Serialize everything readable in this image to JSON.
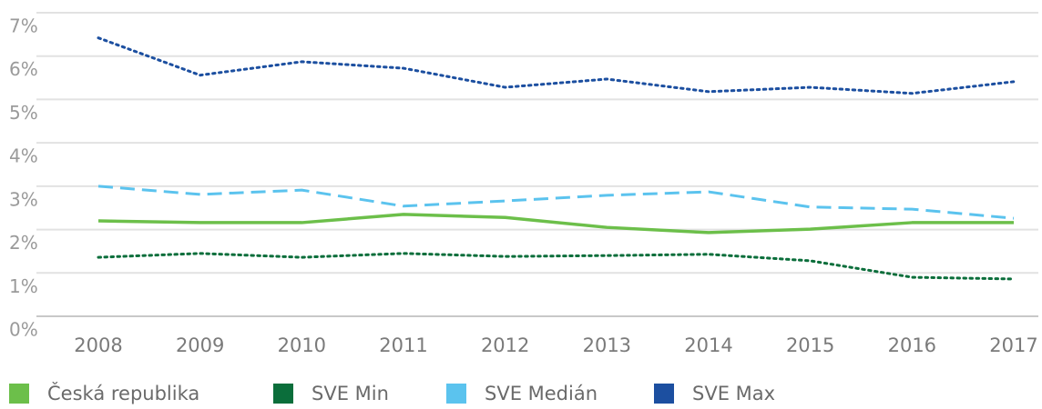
{
  "chart_data": {
    "type": "line",
    "categories": [
      "2008",
      "2009",
      "2010",
      "2011",
      "2012",
      "2013",
      "2014",
      "2015",
      "2016",
      "2017"
    ],
    "series": [
      {
        "name": "Česká republika",
        "color": "#6cbf4a",
        "style": "solid",
        "values": [
          2.2,
          2.16,
          2.16,
          2.35,
          2.28,
          2.05,
          1.93,
          2.01,
          2.16,
          2.16
        ]
      },
      {
        "name": "SVE Min",
        "color": "#0b6e3b",
        "style": "dotted",
        "values": [
          1.36,
          1.45,
          1.36,
          1.45,
          1.38,
          1.4,
          1.43,
          1.28,
          0.9,
          0.86
        ]
      },
      {
        "name": "SVE Medián",
        "color": "#5bc3ee",
        "style": "dashed",
        "values": [
          3.0,
          2.81,
          2.91,
          2.54,
          2.66,
          2.79,
          2.87,
          2.52,
          2.47,
          2.26
        ]
      },
      {
        "name": "SVE Max",
        "color": "#1c4fa0",
        "style": "dotted",
        "values": [
          6.42,
          5.56,
          5.87,
          5.72,
          5.28,
          5.47,
          5.18,
          5.28,
          5.14,
          5.41
        ]
      }
    ],
    "ylim": [
      0,
      7
    ],
    "yticks": [
      {
        "value": 0,
        "label": "0%"
      },
      {
        "value": 1,
        "label": "1%"
      },
      {
        "value": 2,
        "label": "2%"
      },
      {
        "value": 3,
        "label": "3%"
      },
      {
        "value": 4,
        "label": "4%"
      },
      {
        "value": 5,
        "label": "5%"
      },
      {
        "value": 6,
        "label": "6%"
      },
      {
        "value": 7,
        "label": "7%"
      }
    ],
    "grid": true
  }
}
